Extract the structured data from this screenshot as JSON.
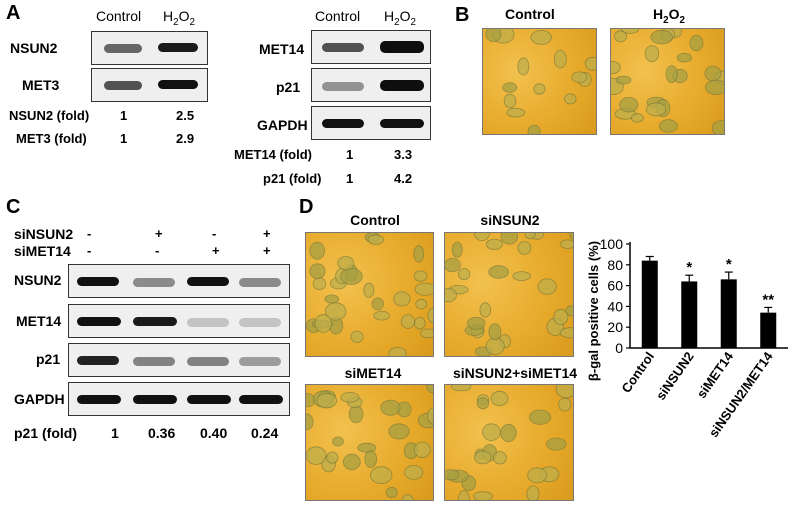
{
  "panel_labels": {
    "a": "A",
    "b": "B",
    "c": "C",
    "d": "D"
  },
  "panel_a": {
    "left": {
      "col_control": "Control",
      "col_h2o2": "H2O2",
      "rows": [
        "NSUN2",
        "MET3"
      ],
      "quant": [
        {
          "label": "NSUN2 (fold)",
          "control": "1",
          "h2o2": "2.5"
        },
        {
          "label": "MET3  (fold)",
          "control": "1",
          "h2o2": "2.9"
        }
      ]
    },
    "right": {
      "col_control": "Control",
      "col_h2o2": "H2O2",
      "rows": [
        "MET14",
        "p21",
        "GAPDH"
      ],
      "quant": [
        {
          "label": "MET14  (fold)",
          "control": "1",
          "h2o2": "3.3"
        },
        {
          "label": "p21 (fold)",
          "control": "1",
          "h2o2": "4.2"
        }
      ]
    }
  },
  "panel_b": {
    "labels": [
      "Control",
      "H2O2"
    ]
  },
  "panel_c": {
    "conditions": [
      {
        "label": "siNSUN2",
        "values": [
          "-",
          "+",
          "-",
          "+"
        ]
      },
      {
        "label": "siMET14",
        "values": [
          "-",
          "-",
          "+",
          "+"
        ]
      }
    ],
    "rows": [
      "NSUN2",
      "MET14",
      "p21",
      "GAPDH"
    ],
    "quant_label": "p21 (fold)",
    "quant_values": [
      "1",
      "0.36",
      "0.40",
      "0.24"
    ]
  },
  "panel_d": {
    "micro_labels": [
      "Control",
      "siNSUN2",
      "siMET14",
      "siNSUN2+siMET14"
    ]
  },
  "chart_data": {
    "type": "bar",
    "categories": [
      "Control",
      "siNSUN2",
      "siMET14",
      "siNSUN2/MET14"
    ],
    "values": [
      84,
      64,
      66,
      34
    ],
    "errors": [
      4,
      6,
      7,
      5
    ],
    "significance": [
      "",
      "*",
      "*",
      "**"
    ],
    "ylabel": "β-gal positive cells (%)",
    "ylim": [
      0,
      100
    ],
    "yticks": [
      "0",
      "20",
      "40",
      "60",
      "80",
      "100"
    ],
    "bar_color": "#000000"
  }
}
